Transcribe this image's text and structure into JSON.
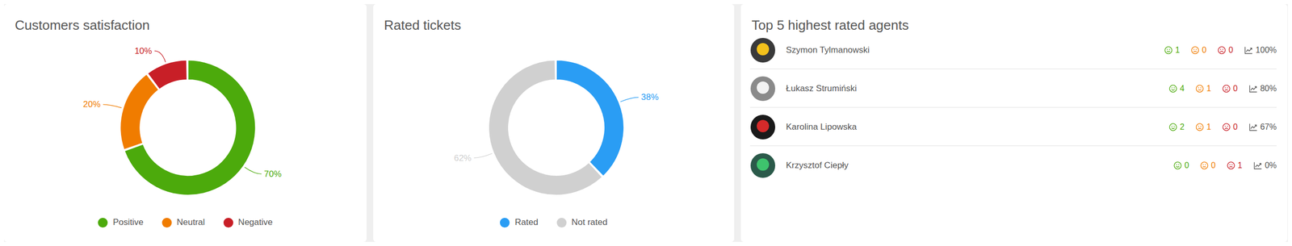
{
  "chart_data": [
    {
      "type": "donut",
      "title": "Customers satisfaction",
      "categories": [
        "Positive",
        "Neutral",
        "Negative"
      ],
      "values": [
        70,
        20,
        10
      ],
      "value_labels": [
        "70%",
        "20%",
        "10%"
      ],
      "colors": [
        "#4caa0c",
        "#f07c00",
        "#c81f27"
      ],
      "legend": "bottom",
      "data_labels": true
    },
    {
      "type": "donut",
      "title": "Rated tickets",
      "categories": [
        "Rated",
        "Not rated"
      ],
      "values": [
        38,
        62
      ],
      "value_labels": [
        "38%",
        "62%"
      ],
      "colors": [
        "#2a9df4",
        "#d0d0d0"
      ],
      "legend": "bottom",
      "data_labels": true
    }
  ],
  "table": {
    "title": "Top 5 highest rated agents",
    "rows": [
      {
        "name": "Szymon Tylmanowski",
        "positive": 1,
        "neutral": 0,
        "negative": 0,
        "rating": "100%"
      },
      {
        "name": "Łukasz Strumiński",
        "positive": 4,
        "neutral": 1,
        "negative": 0,
        "rating": "80%"
      },
      {
        "name": "Karolina Lipowska",
        "positive": 2,
        "neutral": 1,
        "negative": 0,
        "rating": "67%"
      },
      {
        "name": "Krzysztof Ciepły",
        "positive": 0,
        "neutral": 0,
        "negative": 1,
        "rating": "0%"
      }
    ]
  }
}
